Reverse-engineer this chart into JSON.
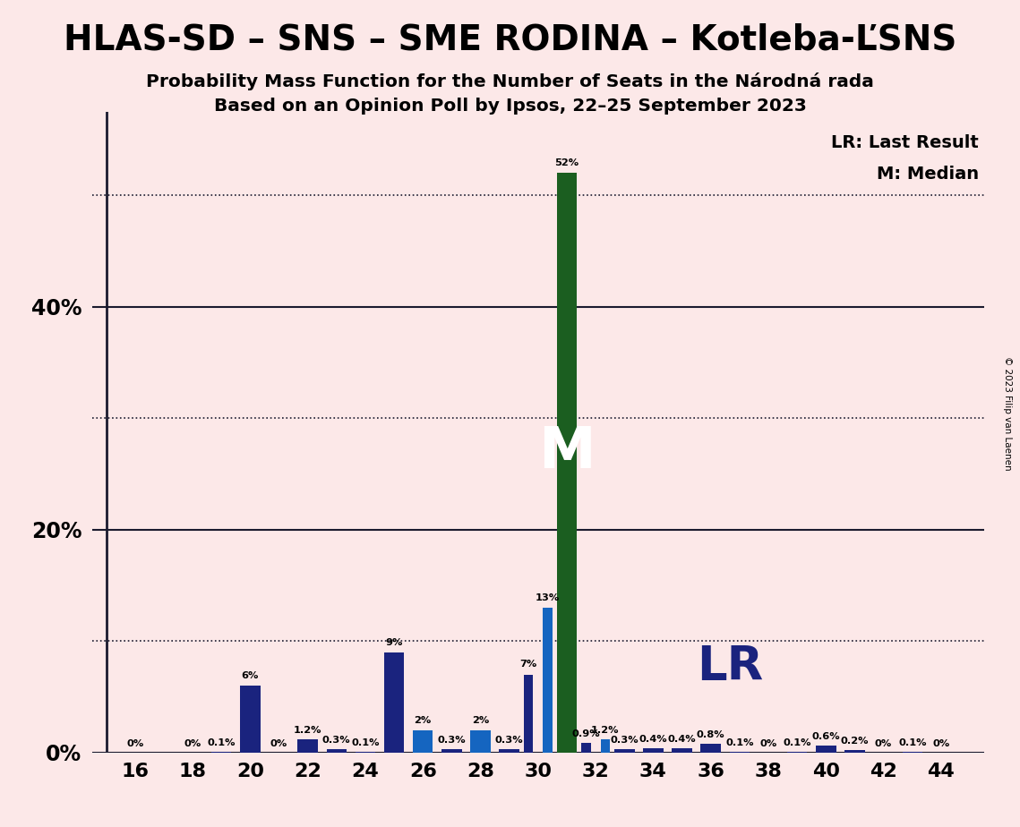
{
  "title": "HLAS-SD – SNS – SME RODINA – Kotleba-ĽSNS",
  "subtitle1": "Probability Mass Function for the Number of Seats in the Národná rada",
  "subtitle2": "Based on an Opinion Poll by Ipsos, 22–25 September 2023",
  "copyright": "© 2023 Filip van Laenen",
  "lr_label": "LR: Last Result",
  "median_label": "M: Median",
  "background_color": "#fce8e8",
  "color_dark_navy": "#1a237e",
  "color_medium_blue": "#1565c0",
  "color_green": "#1b5e20",
  "lr_seat": 33,
  "median_seat": 31,
  "xlim_left": 14.5,
  "xlim_right": 45.5,
  "ylim": [
    0,
    0.575
  ],
  "solid_lines": [
    0.0,
    0.2,
    0.4
  ],
  "dotted_lines": [
    0.1,
    0.3,
    0.5
  ],
  "ytick_positions": [
    0.0,
    0.2,
    0.4
  ],
  "ytick_labels": [
    "0%",
    "20%",
    "40%"
  ],
  "xticks": [
    16,
    18,
    20,
    22,
    24,
    26,
    28,
    30,
    32,
    34,
    36,
    38,
    40,
    42,
    44
  ],
  "bar_width": 0.7,
  "seats": [
    16,
    17,
    18,
    19,
    20,
    21,
    22,
    23,
    24,
    25,
    26,
    27,
    28,
    29,
    30,
    31,
    32,
    33,
    34,
    35,
    36,
    37,
    38,
    39,
    40,
    41,
    42,
    43,
    44
  ],
  "values": [
    0.0,
    0.0,
    0.0,
    0.001,
    0.06,
    0.0,
    0.012,
    0.003,
    0.001,
    0.09,
    0.02,
    0.003,
    0.02,
    0.003,
    0.07,
    0.52,
    0.009,
    0.003,
    0.004,
    0.004,
    0.008,
    0.001,
    0.0,
    0.001,
    0.006,
    0.002,
    0.0,
    0.001,
    0.0
  ],
  "values2": [
    0.0,
    0.0,
    0.0,
    0.0,
    0.0,
    0.0,
    0.0,
    0.0,
    0.0,
    0.0,
    0.0,
    0.0,
    0.0,
    0.0,
    0.13,
    0.0,
    0.012,
    0.0,
    0.0,
    0.0,
    0.0,
    0.0,
    0.0,
    0.0,
    0.0,
    0.0,
    0.0,
    0.0,
    0.0
  ],
  "colors": [
    "dn",
    "dn",
    "dn",
    "dn",
    "dn",
    "dn",
    "dn",
    "dn",
    "dn",
    "dn",
    "mb",
    "dn",
    "dn",
    "dn",
    "dn",
    "gr",
    "dn",
    "dn",
    "dn",
    "dn",
    "dn",
    "dn",
    "dn",
    "dn",
    "dn",
    "dn",
    "dn",
    "dn",
    "dn"
  ],
  "annots": {
    "16": [
      [
        "0%",
        "left",
        0.001
      ]
    ],
    "17": [],
    "18": [
      [
        "0%",
        "left",
        0.001
      ]
    ],
    "19": [
      [
        "0.1%",
        "left",
        0.002
      ]
    ],
    "20": [
      [
        "6%",
        "left",
        0.062
      ]
    ],
    "21": [
      [
        "0%",
        "left",
        0.001
      ]
    ],
    "22": [
      [
        "1.2%",
        "left",
        0.013
      ]
    ],
    "23": [
      [
        "0.3%",
        "left",
        0.004
      ]
    ],
    "24": [
      [
        "0.1%",
        "left",
        0.002
      ]
    ],
    "25": [
      [
        "9%",
        "left",
        0.092
      ]
    ],
    "26": [
      [
        "2%",
        "right",
        0.022
      ]
    ],
    "27": [
      [
        "0.3%",
        "left",
        0.004
      ]
    ],
    "28": [
      [
        "2%",
        "right",
        0.022
      ]
    ],
    "29": [
      [
        "0.3%",
        "left",
        0.004
      ]
    ],
    "30": [
      [
        "7%",
        "left",
        0.072
      ],
      [
        "13%",
        "right",
        0.132
      ]
    ],
    "31": [
      [
        "52%",
        "center",
        0.522
      ]
    ],
    "32": [
      [
        "0.9%",
        "left",
        0.01
      ],
      [
        "1.2%",
        "right",
        0.013
      ]
    ],
    "33": [
      [
        "0.3%",
        "left",
        0.004
      ]
    ],
    "34": [
      [
        "0.4%",
        "left",
        0.005
      ]
    ],
    "35": [
      [
        "0.4%",
        "left",
        0.005
      ]
    ],
    "36": [
      [
        "0.8%",
        "left",
        0.009
      ]
    ],
    "37": [
      [
        "0.1%",
        "left",
        0.002
      ]
    ],
    "38": [
      [
        "0%",
        "left",
        0.001
      ]
    ],
    "39": [
      [
        "0.1%",
        "left",
        0.002
      ]
    ],
    "40": [
      [
        "0.6%",
        "left",
        0.007
      ]
    ],
    "41": [
      [
        "0.2%",
        "left",
        0.003
      ]
    ],
    "42": [
      [
        "0%",
        "left",
        0.001
      ]
    ],
    "43": [
      [
        "0.1%",
        "left",
        0.002
      ]
    ],
    "44": [
      [
        "0%",
        "left",
        0.001
      ]
    ]
  }
}
